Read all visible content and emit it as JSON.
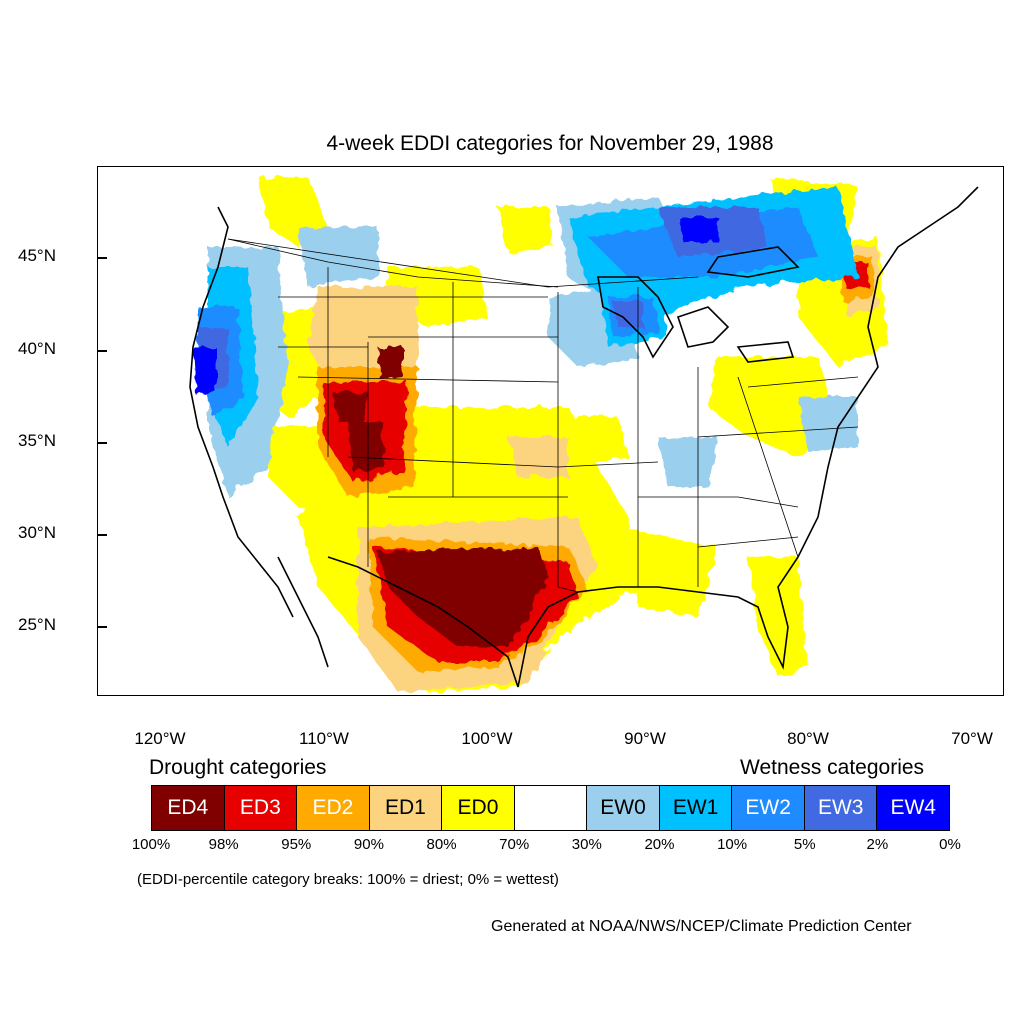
{
  "title": "4-week EDDI categories for November 29, 1988",
  "latitude_labels": [
    "45°N",
    "40°N",
    "35°N",
    "30°N",
    "25°N"
  ],
  "longitude_labels": [
    "120°W",
    "110°W",
    "100°W",
    "90°W",
    "80°W",
    "70°W"
  ],
  "legend": {
    "drought_heading": "Drought categories",
    "wetness_heading": "Wetness categories",
    "categories": [
      {
        "label": "ED4",
        "color": "#800000",
        "text_color": "#ffffff"
      },
      {
        "label": "ED3",
        "color": "#e60000",
        "text_color": "#ffffff"
      },
      {
        "label": "ED2",
        "color": "#ffaa00",
        "text_color": "#ffffff"
      },
      {
        "label": "ED1",
        "color": "#fcd37f",
        "text_color": "#000000"
      },
      {
        "label": "ED0",
        "color": "#ffff00",
        "text_color": "#000000"
      },
      {
        "label": "",
        "color": "#ffffff",
        "text_color": "#000000"
      },
      {
        "label": "EW0",
        "color": "#9bcfee",
        "text_color": "#000000"
      },
      {
        "label": "EW1",
        "color": "#00c0ff",
        "text_color": "#000000"
      },
      {
        "label": "EW2",
        "color": "#1e8cff",
        "text_color": "#ffffff"
      },
      {
        "label": "EW3",
        "color": "#4169e1",
        "text_color": "#ffffff"
      },
      {
        "label": "EW4",
        "color": "#0000ff",
        "text_color": "#ffffff"
      }
    ],
    "percentiles": [
      "100%",
      "98%",
      "95%",
      "90%",
      "80%",
      "70%",
      "30%",
      "20%",
      "10%",
      "5%",
      "2%",
      "0%"
    ]
  },
  "note": "(EDDI-percentile category breaks: 100% = driest; 0% = wettest)",
  "credit": "Generated at NOAA/NWS/NCEP/Climate Prediction Center"
}
